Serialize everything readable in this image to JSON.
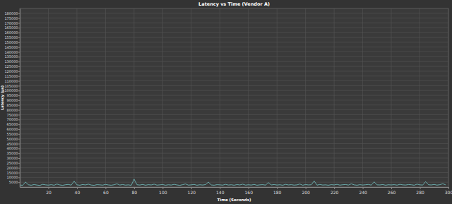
{
  "chart_data": {
    "type": "line",
    "title": "Latency vs Time (Vendor A)",
    "x_label": "Time (Seconds)",
    "y_label": "Latency (µs)",
    "x": [
      0,
      2,
      4,
      6,
      8,
      10,
      12,
      14,
      16,
      18,
      20,
      22,
      24,
      26,
      28,
      30,
      32,
      34,
      36,
      38,
      40,
      42,
      44,
      46,
      48,
      50,
      52,
      54,
      56,
      58,
      60,
      62,
      64,
      66,
      68,
      70,
      72,
      74,
      76,
      78,
      80,
      82,
      84,
      86,
      88,
      90,
      92,
      94,
      96,
      98,
      100,
      102,
      104,
      106,
      108,
      110,
      112,
      114,
      116,
      118,
      120,
      122,
      124,
      126,
      128,
      130,
      132,
      134,
      136,
      138,
      140,
      142,
      144,
      146,
      148,
      150,
      152,
      154,
      156,
      158,
      160,
      162,
      164,
      166,
      168,
      170,
      172,
      174,
      176,
      178,
      180,
      182,
      184,
      186,
      188,
      190,
      192,
      194,
      196,
      198,
      200,
      202,
      204,
      206,
      208,
      210,
      212,
      214,
      216,
      218,
      220,
      222,
      224,
      226,
      228,
      230,
      232,
      234,
      236,
      238,
      240,
      242,
      244,
      246,
      248,
      250,
      252,
      254,
      256,
      258,
      260,
      262,
      264,
      266,
      268,
      270,
      272,
      274,
      276,
      278,
      280,
      282,
      284,
      286,
      288,
      290,
      292,
      294,
      296,
      298
    ],
    "values": [
      2200,
      1800,
      5200,
      2400,
      1900,
      2600,
      2100,
      1700,
      2800,
      2300,
      2000,
      2500,
      1900,
      3100,
      2200,
      1800,
      2400,
      2700,
      2000,
      6100,
      2300,
      1900,
      2600,
      2200,
      3000,
      2100,
      1800,
      2500,
      2300,
      2000,
      2700,
      2200,
      1900,
      2400,
      3300,
      2100,
      2600,
      2000,
      2300,
      1800,
      8200,
      2400,
      2100,
      2700,
      1900,
      2500,
      2200,
      3000,
      2000,
      2300,
      2600,
      1900,
      2400,
      2100,
      2800,
      2200,
      1800,
      2500,
      3200,
      2000,
      2300,
      2700,
      1900,
      2400,
      2100,
      2600,
      5100,
      2200,
      1900,
      2500,
      2300,
      2000,
      2800,
      2100,
      2400,
      1900,
      2600,
      2200,
      3000,
      2000,
      2400,
      2100,
      2700,
      1900,
      2300,
      2500,
      2000,
      4600,
      2200,
      2600,
      2100,
      2400,
      1900,
      2800,
      2200,
      2500,
      2000,
      2300,
      3100,
      1900,
      2600,
      2200,
      2400,
      6300,
      2000,
      2700,
      2100,
      2300,
      1900,
      2500,
      2200,
      2800,
      2000,
      2400,
      2600,
      2100,
      3300,
      2300,
      1900,
      2500,
      2100,
      2400,
      2700,
      2000,
      5400,
      2300,
      2200,
      2600,
      1900,
      2400,
      2200,
      2500,
      2000,
      2800,
      2300,
      2100,
      2600,
      2400,
      1900,
      3000,
      2300,
      2100,
      5600,
      2400,
      2200,
      2700,
      2000,
      2500,
      3400,
      2300
    ],
    "color": "#76c7c7",
    "xlim": [
      0,
      300
    ],
    "xticks": [
      20,
      40,
      60,
      80,
      100,
      120,
      140,
      160,
      180,
      200,
      220,
      240,
      260,
      280,
      300
    ],
    "ylim": [
      0,
      185000
    ],
    "yticks": [
      5000,
      10000,
      15000,
      20000,
      25000,
      30000,
      35000,
      40000,
      45000,
      50000,
      55000,
      60000,
      65000,
      70000,
      75000,
      80000,
      85000,
      90000,
      95000,
      100000,
      105000,
      110000,
      115000,
      120000,
      125000,
      130000,
      135000,
      140000,
      145000,
      150000,
      155000,
      160000,
      165000,
      170000,
      175000,
      180000
    ],
    "grid": true
  }
}
